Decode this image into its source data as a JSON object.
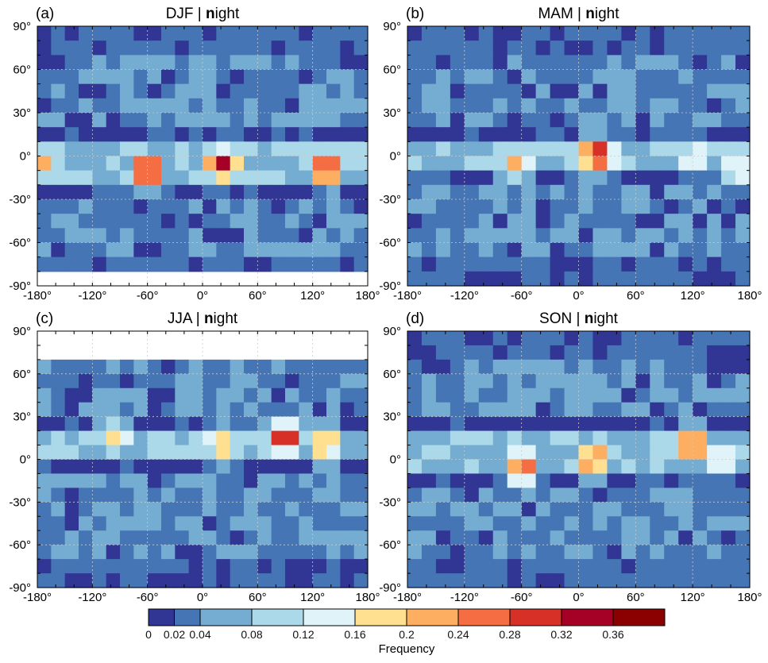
{
  "chart_data": {
    "type": "heatmap",
    "xlabel": "",
    "ylabel": "",
    "xlim": [
      -180,
      180
    ],
    "ylim": [
      -90,
      90
    ],
    "x_ticks": [
      "-180°",
      "-120°",
      "-60°",
      "0°",
      "60°",
      "120°",
      "180°"
    ],
    "y_ticks": [
      "90°",
      "60°",
      "30°",
      "0°",
      "-30°",
      "-60°",
      "-90°"
    ],
    "grid": true,
    "cell_size_deg": {
      "lon": 15,
      "lat": 10
    },
    "panels": [
      {
        "label": "(a)",
        "season": "DJF",
        "sep": " | ",
        "mode": "night",
        "nodata_lat_below": -80,
        "nodata_lat_above": 90,
        "itcz_lat": -5,
        "hotspots": [
          {
            "lon": -60,
            "lat": -10,
            "peak": 0.37
          },
          {
            "lon": 22,
            "lat": -5,
            "peak": 0.35
          },
          {
            "lon": 135,
            "lat": -8,
            "peak": 0.38
          },
          {
            "lon": -172,
            "lat": -5,
            "peak": 0.22
          }
        ]
      },
      {
        "label": "(b)",
        "season": "MAM",
        "sep": " | ",
        "mode": "night",
        "nodata_lat_below": -90,
        "nodata_lat_above": 90,
        "itcz_lat": 0,
        "hotspots": [
          {
            "lon": 20,
            "lat": 0,
            "peak": 0.36
          },
          {
            "lon": -65,
            "lat": -5,
            "peak": 0.24
          },
          {
            "lon": 120,
            "lat": 0,
            "peak": 0.19
          },
          {
            "lon": 165,
            "lat": -10,
            "peak": 0.18
          }
        ]
      },
      {
        "label": "(c)",
        "season": "JJA",
        "sep": " | ",
        "mode": "night",
        "nodata_lat_below": -90,
        "nodata_lat_above": 70,
        "itcz_lat": 10,
        "hotspots": [
          {
            "lon": 90,
            "lat": 15,
            "peak": 0.37
          },
          {
            "lon": 20,
            "lat": 10,
            "peak": 0.24
          },
          {
            "lon": -95,
            "lat": 15,
            "peak": 0.22
          },
          {
            "lon": 135,
            "lat": 10,
            "peak": 0.24
          }
        ]
      },
      {
        "label": "(d)",
        "season": "SON",
        "sep": " | ",
        "mode": "night",
        "nodata_lat_below": -90,
        "nodata_lat_above": 90,
        "itcz_lat": 5,
        "hotspots": [
          {
            "lon": -60,
            "lat": -5,
            "peak": 0.3
          },
          {
            "lon": 15,
            "lat": 0,
            "peak": 0.3
          },
          {
            "lon": 120,
            "lat": 10,
            "peak": 0.33
          },
          {
            "lon": 150,
            "lat": 0,
            "peak": 0.2
          }
        ]
      }
    ],
    "colorbar": {
      "title": "Frequency",
      "bounds": [
        0,
        0.02,
        0.04,
        0.08,
        0.12,
        0.16,
        0.2,
        0.24,
        0.28,
        0.32,
        0.36,
        0.4
      ],
      "tick_labels": [
        "0",
        "0.02",
        "0.04",
        "0.08",
        "0.12",
        "0.16",
        "0.2",
        "0.24",
        "0.28",
        "0.32",
        "0.36"
      ],
      "colors": [
        "#313695",
        "#4575b4",
        "#74add1",
        "#abd9e9",
        "#e0f3f8",
        "#fee090",
        "#fdae61",
        "#f46d43",
        "#d73027",
        "#a50026",
        "#8b0000"
      ]
    }
  }
}
